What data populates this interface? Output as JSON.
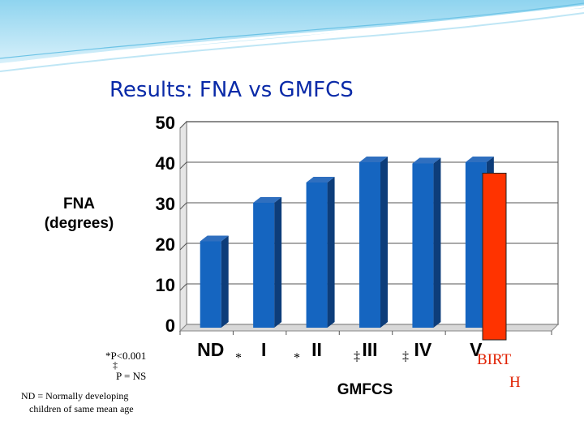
{
  "slide": {
    "title": "Results: FNA vs GMFCS"
  },
  "chart_data": {
    "type": "bar",
    "title": "",
    "xlabel": "GMFCS",
    "ylabel_lines": [
      "FNA",
      "(degrees)"
    ],
    "categories": [
      "ND",
      "I",
      "II",
      "III",
      "IV",
      "V"
    ],
    "values": [
      20.5,
      30,
      35,
      40,
      39.7,
      40
    ],
    "ylim": [
      0,
      50
    ],
    "yticks": [
      0,
      10,
      20,
      30,
      40,
      50
    ],
    "grid": true,
    "bar_color": "#1565c0",
    "overlay": {
      "label_line1": "BIRT",
      "label_line2": "H",
      "value": 37.3,
      "color": "#ff3300"
    },
    "significance_markers": [
      "*",
      "*",
      "‡",
      "‡"
    ]
  },
  "notes": {
    "p_sig": "*P<0.001",
    "dagger": "‡",
    "p_ns": "P = NS",
    "nd_line1": "ND = Normally developing",
    "nd_line2": "children of same mean age"
  }
}
